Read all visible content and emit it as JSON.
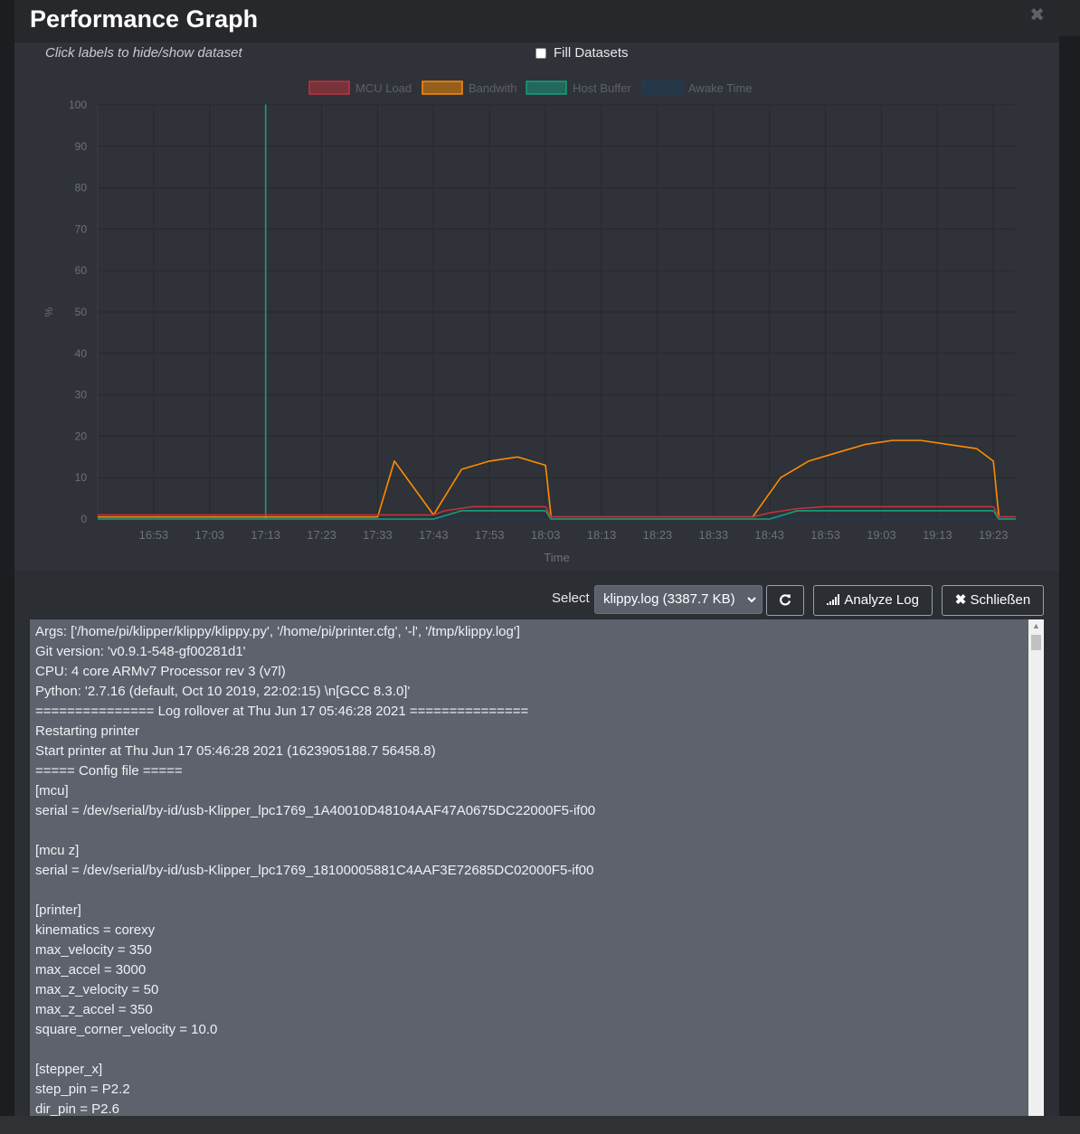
{
  "modal": {
    "title": "Performance Graph",
    "close_icon": "close-icon"
  },
  "chart": {
    "hint": "Click labels to hide/show dataset",
    "fill_datasets_label": "Fill Datasets",
    "fill_datasets_checked": false
  },
  "chart_data": {
    "type": "line",
    "ylabel": "%",
    "xlabel": "Time",
    "ylim": [
      0,
      100
    ],
    "yticks": [
      0,
      10,
      20,
      30,
      40,
      50,
      60,
      70,
      80,
      90,
      100
    ],
    "xticks": [
      "16:53",
      "17:03",
      "17:13",
      "17:23",
      "17:33",
      "17:43",
      "17:53",
      "18:03",
      "18:13",
      "18:23",
      "18:33",
      "18:43",
      "18:53",
      "19:03",
      "19:13",
      "19:23"
    ],
    "grid": true,
    "legend_position": "top",
    "series": [
      {
        "name": "MCU Load",
        "color": "#c0323c",
        "x": [
          "16:43",
          "16:53",
          "17:03",
          "17:13",
          "17:23",
          "17:33",
          "17:43",
          "17:45",
          "17:50",
          "17:55",
          "18:00",
          "18:03",
          "18:04",
          "18:13",
          "18:23",
          "18:33",
          "18:40",
          "18:43",
          "18:48",
          "18:53",
          "19:03",
          "19:13",
          "19:23",
          "19:24",
          "19:27"
        ],
        "y": [
          1,
          1,
          1,
          1,
          1,
          1,
          1,
          2,
          3,
          3,
          3,
          3,
          0.5,
          0.5,
          0.5,
          0.5,
          0.5,
          1.5,
          2.5,
          3,
          3,
          3,
          3,
          0.5,
          0.5
        ]
      },
      {
        "name": "Bandwith",
        "color": "#ff8c00",
        "x": [
          "16:43",
          "16:53",
          "17:03",
          "17:13",
          "17:23",
          "17:33",
          "17:36",
          "17:43",
          "17:48",
          "17:53",
          "17:58",
          "18:03",
          "18:04",
          "18:13",
          "18:23",
          "18:33",
          "18:40",
          "18:45",
          "18:50",
          "18:55",
          "19:00",
          "19:05",
          "19:10",
          "19:15",
          "19:20",
          "19:23",
          "19:24",
          "19:27"
        ],
        "y": [
          0.5,
          0.5,
          0.5,
          0.5,
          0.5,
          0.5,
          14,
          1,
          12,
          14,
          15,
          13,
          0.5,
          0.5,
          0.5,
          0.5,
          0.5,
          10,
          14,
          16,
          18,
          19,
          19,
          18,
          17,
          14,
          0.5,
          0.5
        ]
      },
      {
        "name": "Host Buffer",
        "color": "#169e7e",
        "x": [
          "16:43",
          "17:13",
          "17:13",
          "17:13",
          "17:43",
          "17:48",
          "17:53",
          "18:03",
          "18:04",
          "18:43",
          "18:48",
          "18:53",
          "19:03",
          "19:13",
          "19:23",
          "19:24",
          "19:27"
        ],
        "y": [
          0,
          0,
          100,
          0,
          0,
          2,
          2,
          2,
          0,
          0,
          2,
          2,
          2,
          2,
          2,
          0,
          0
        ]
      },
      {
        "name": "Awake Time",
        "color": "#1f3b58",
        "x": [
          "16:43",
          "19:27"
        ],
        "y": [
          0,
          0
        ]
      }
    ]
  },
  "toolbar": {
    "select_label": "Select",
    "selected_log": "klippy.log (3387.7 KB)",
    "refresh_icon": "refresh-icon",
    "analyze_label": "Analyze Log",
    "analyze_icon": "signal-bars-icon",
    "close_label": "Schließen",
    "close_icon": "close-icon"
  },
  "log": {
    "lines": [
      "Args: ['/home/pi/klipper/klippy/klippy.py', '/home/pi/printer.cfg', '-l', '/tmp/klippy.log']",
      "Git version: 'v0.9.1-548-gf00281d1'",
      "CPU: 4 core ARMv7 Processor rev 3 (v7l)",
      "Python: '2.7.16 (default, Oct 10 2019, 22:02:15) \\n[GCC 8.3.0]'",
      "=============== Log rollover at Thu Jun 17 05:46:28 2021 ===============",
      "Restarting printer",
      "Start printer at Thu Jun 17 05:46:28 2021 (1623905188.7 56458.8)",
      "===== Config file =====",
      "[mcu]",
      "serial = /dev/serial/by-id/usb-Klipper_lpc1769_1A40010D48104AAF47A0675DC22000F5-if00",
      "",
      "[mcu z]",
      "serial = /dev/serial/by-id/usb-Klipper_lpc1769_18100005881C4AAF3E72685DC02000F5-if00",
      "",
      "[printer]",
      "kinematics = corexy",
      "max_velocity = 350",
      "max_accel = 3000",
      "max_z_velocity = 50",
      "max_z_accel = 350",
      "square_corner_velocity = 10.0",
      "",
      "[stepper_x]",
      "step_pin = P2.2",
      "dir_pin = P2.6"
    ]
  }
}
